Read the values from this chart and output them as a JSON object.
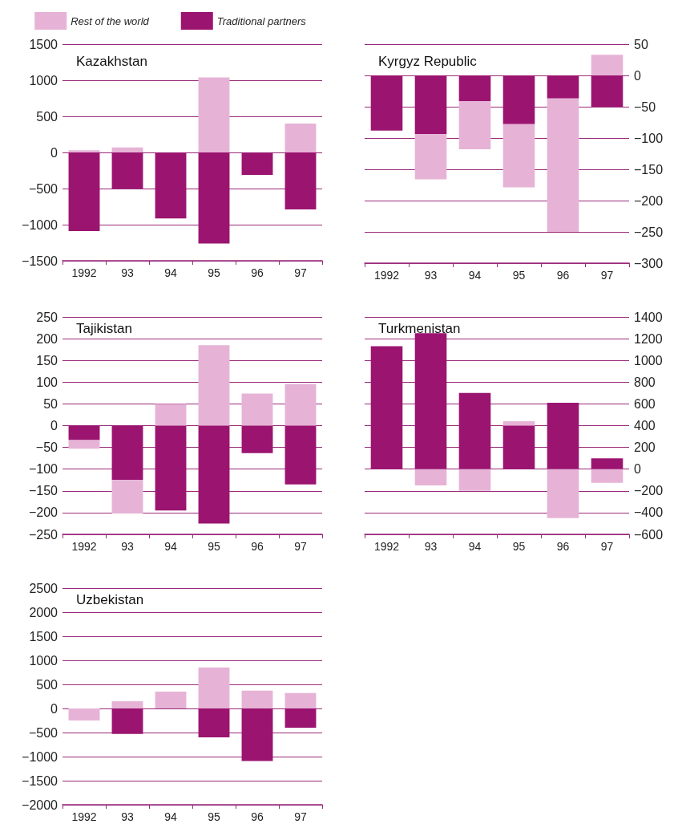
{
  "chart_data": [
    {
      "type": "bar",
      "title": "Kazakhstan",
      "categories": [
        "1992",
        "93",
        "94",
        "95",
        "96",
        "97"
      ],
      "stacked": true,
      "legend": "top",
      "grid": "y",
      "ylim": [
        -1500,
        1500
      ],
      "yticks": [
        -1500,
        -1000,
        -500,
        0,
        500,
        1000,
        1500
      ],
      "series": [
        {
          "name": "Traditional partners",
          "color": "#9b1470",
          "values": [
            -1090,
            -500,
            -915,
            -1260,
            -310,
            -790
          ]
        },
        {
          "name": "Rest of the world",
          "color": "#e6b3d6",
          "values": [
            30,
            70,
            0,
            1040,
            0,
            400
          ]
        }
      ]
    },
    {
      "type": "bar",
      "title": "Kyrgyz Republic",
      "categories": [
        "1992",
        "93",
        "94",
        "95",
        "96",
        "97"
      ],
      "stacked": true,
      "grid": "y",
      "y2lim": [
        -300,
        50
      ],
      "y2ticks": [
        -300,
        -250,
        -200,
        -150,
        -100,
        -50,
        0,
        50
      ],
      "series": [
        {
          "color": "#9b1470",
          "axis": "y2",
          "values": [
            -88,
            -94,
            -41,
            -78,
            -37,
            -50
          ]
        },
        {
          "color": "#e6b3d6",
          "axis": "y2",
          "values": [
            0,
            -72,
            -77,
            -101,
            -213,
            33
          ]
        }
      ]
    },
    {
      "type": "bar",
      "title": "Tajikistan",
      "categories": [
        "1992",
        "93",
        "94",
        "95",
        "96",
        "97"
      ],
      "stacked": true,
      "grid": "y",
      "ylim": [
        -250,
        250
      ],
      "yticks": [
        -250,
        -200,
        -150,
        -100,
        -50,
        0,
        50,
        100,
        150,
        200,
        250
      ],
      "series": [
        {
          "color": "#9b1470",
          "values": [
            -33,
            -125,
            -195,
            -225,
            -63,
            -135
          ]
        },
        {
          "color": "#e6b3d6",
          "values": [
            -20,
            -77,
            50,
            185,
            74,
            96
          ]
        }
      ]
    },
    {
      "type": "bar",
      "title": "Turkmenistan",
      "categories": [
        "1992",
        "93",
        "94",
        "95",
        "96",
        "97"
      ],
      "stacked": true,
      "grid": "y",
      "y2lim": [
        -600,
        1400
      ],
      "y2ticks": [
        -600,
        -400,
        -200,
        0,
        200,
        400,
        600,
        800,
        1000,
        1200,
        1400
      ],
      "series": [
        {
          "color": "#9b1470",
          "axis": "y2",
          "values": [
            1130,
            1250,
            700,
            400,
            610,
            100
          ]
        },
        {
          "color": "#e6b3d6",
          "axis": "y2",
          "values": [
            0,
            -150,
            -200,
            40,
            -450,
            -125
          ]
        }
      ]
    },
    {
      "type": "bar",
      "title": "Uzbekistan",
      "categories": [
        "1992",
        "93",
        "94",
        "95",
        "96",
        "97"
      ],
      "stacked": true,
      "grid": "y",
      "ylim": [
        -2000,
        2500
      ],
      "yticks": [
        -2000,
        -1500,
        -1000,
        -500,
        0,
        500,
        1000,
        1500,
        2000,
        2500
      ],
      "series": [
        {
          "color": "#9b1470",
          "values": [
            0,
            -530,
            0,
            -600,
            -1090,
            -400
          ]
        },
        {
          "color": "#e6b3d6",
          "values": [
            -250,
            150,
            350,
            850,
            370,
            320
          ]
        }
      ]
    }
  ]
}
